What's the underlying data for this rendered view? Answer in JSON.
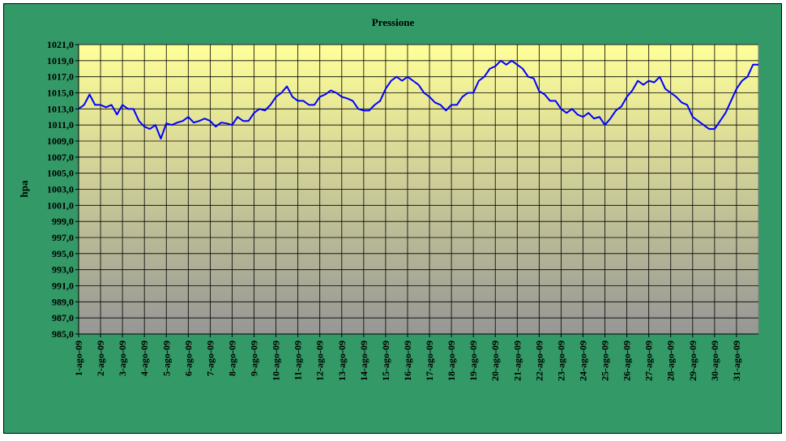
{
  "chart_data": {
    "type": "line",
    "title": "Pressione",
    "y_label": "hpa",
    "categories": [
      "1-ago-09",
      null,
      null,
      null,
      "2-ago-09",
      null,
      null,
      null,
      "3-ago-09",
      null,
      null,
      null,
      "4-ago-09",
      null,
      null,
      null,
      "5-ago-09",
      null,
      null,
      null,
      "6-ago-09",
      null,
      null,
      null,
      "7-ago-09",
      null,
      null,
      null,
      "8-ago-09",
      null,
      null,
      null,
      "9-ago-09",
      null,
      null,
      null,
      "10-ago-09",
      null,
      null,
      null,
      "11-ago-09",
      null,
      null,
      null,
      "12-ago-09",
      null,
      null,
      null,
      "13-ago-09",
      null,
      null,
      null,
      "14-ago-09",
      null,
      null,
      null,
      "15-ago-09",
      null,
      null,
      null,
      "16-ago-09",
      null,
      null,
      null,
      "17-ago-09",
      null,
      null,
      null,
      "18-ago-09",
      null,
      null,
      null,
      "19-ago-09",
      null,
      null,
      null,
      "20-ago-09",
      null,
      null,
      null,
      "21-ago-09",
      null,
      null,
      null,
      "22-ago-09",
      null,
      null,
      null,
      "23-ago-09",
      null,
      null,
      null,
      "24-ago-09",
      null,
      null,
      null,
      "25-ago-09",
      null,
      null,
      null,
      "26-ago-09",
      null,
      null,
      null,
      "27-ago-09",
      null,
      null,
      null,
      "28-ago-09",
      null,
      null,
      null,
      "29-ago-09",
      null,
      null,
      null,
      "30-ago-09",
      null,
      null,
      null,
      "31-ago-09",
      null,
      null,
      null,
      null
    ],
    "values": [
      1013,
      1013.5,
      1014.8,
      1013.5,
      1013.5,
      1013.2,
      1013.5,
      1012.3,
      1013.5,
      1013,
      1013,
      1011.5,
      1010.8,
      1010.5,
      1011,
      1009.3,
      1011.2,
      1011,
      1011.3,
      1011.5,
      1012,
      1011.3,
      1011.5,
      1011.8,
      1011.5,
      1010.8,
      1011.3,
      1011.2,
      1011,
      1012,
      1011.5,
      1011.5,
      1012.5,
      1013,
      1012.8,
      1013.5,
      1014.5,
      1015,
      1015.8,
      1014.5,
      1014,
      1014,
      1013.5,
      1013.5,
      1014.5,
      1014.8,
      1015.3,
      1015,
      1014.5,
      1014.3,
      1014,
      1013,
      1012.8,
      1012.8,
      1013.5,
      1014,
      1015.5,
      1016.5,
      1017,
      1016.5,
      1017,
      1016.5,
      1016,
      1015,
      1014.5,
      1013.8,
      1013.5,
      1012.8,
      1013.5,
      1013.5,
      1014.5,
      1015,
      1015,
      1016.5,
      1017,
      1018,
      1018.3,
      1019,
      1018.5,
      1019,
      1018.5,
      1018,
      1017,
      1016.8,
      1015.2,
      1014.8,
      1014,
      1014,
      1013,
      1012.5,
      1013,
      1012.3,
      1012,
      1012.5,
      1011.8,
      1012,
      1011,
      1011.8,
      1012.8,
      1013.3,
      1014.5,
      1015.3,
      1016.5,
      1016,
      1016.5,
      1016.3,
      1017,
      1015.5,
      1015,
      1014.5,
      1013.8,
      1013.5,
      1012,
      1011.5,
      1011,
      1010.5,
      1010.5,
      1011.5,
      1012.5,
      1014,
      1015.5,
      1016.5,
      1017,
      1018.5,
      1018.5
    ],
    "color": "#0000ff",
    "ylim": [
      985,
      1021
    ],
    "yticks": [
      {
        "value": 985,
        "label": "985,0"
      },
      {
        "value": 987,
        "label": "987,0"
      },
      {
        "value": 989,
        "label": "989,0"
      },
      {
        "value": 991,
        "label": "991,0"
      },
      {
        "value": 993,
        "label": "993,0"
      },
      {
        "value": 995,
        "label": "995,0"
      },
      {
        "value": 997,
        "label": "997,0"
      },
      {
        "value": 999,
        "label": "999,0"
      },
      {
        "value": 1001,
        "label": "1001,0"
      },
      {
        "value": 1003,
        "label": "1003,0"
      },
      {
        "value": 1005,
        "label": "1005,0"
      },
      {
        "value": 1007,
        "label": "1007,0"
      },
      {
        "value": 1009,
        "label": "1009,0"
      },
      {
        "value": 1011,
        "label": "1011,0"
      },
      {
        "value": 1013,
        "label": "1013,0"
      },
      {
        "value": 1015,
        "label": "1015,0"
      },
      {
        "value": 1017,
        "label": "1017,0"
      },
      {
        "value": 1019,
        "label": "1019,0"
      },
      {
        "value": 1021,
        "label": "1021,0"
      }
    ],
    "grid": true
  }
}
